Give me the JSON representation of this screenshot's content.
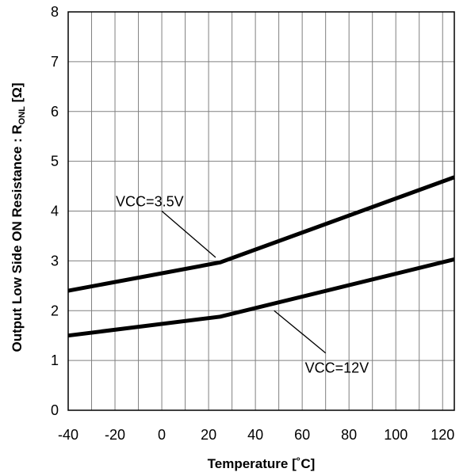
{
  "chart_data": {
    "type": "line",
    "xlabel": "Temperature [˚C]",
    "ylabel_main": "Output Low Side ON Resistance : R",
    "ylabel_sub": "ONL",
    "ylabel_unit": " [Ω]",
    "xlim": [
      -40,
      125
    ],
    "ylim": [
      0,
      8
    ],
    "x_ticks": [
      -40,
      -20,
      0,
      20,
      40,
      60,
      80,
      100,
      120
    ],
    "y_ticks": [
      0,
      1,
      2,
      3,
      4,
      5,
      6,
      7,
      8
    ],
    "grid": true,
    "series": [
      {
        "name": "VCC=3.5V",
        "x": [
          -40,
          25,
          125
        ],
        "y": [
          2.4,
          2.97,
          4.68
        ]
      },
      {
        "name": "VCC=12V",
        "x": [
          -40,
          25,
          125
        ],
        "y": [
          1.5,
          1.88,
          3.03
        ]
      }
    ],
    "annotations": [
      {
        "series_index": 0,
        "label": "VCC=3.5V",
        "point": [
          23,
          3.07
        ],
        "from": [
          0,
          4.0
        ]
      },
      {
        "series_index": 1,
        "label": "VCC=12V",
        "point": [
          48,
          2.0
        ],
        "from": [
          70,
          1.15
        ]
      }
    ]
  }
}
